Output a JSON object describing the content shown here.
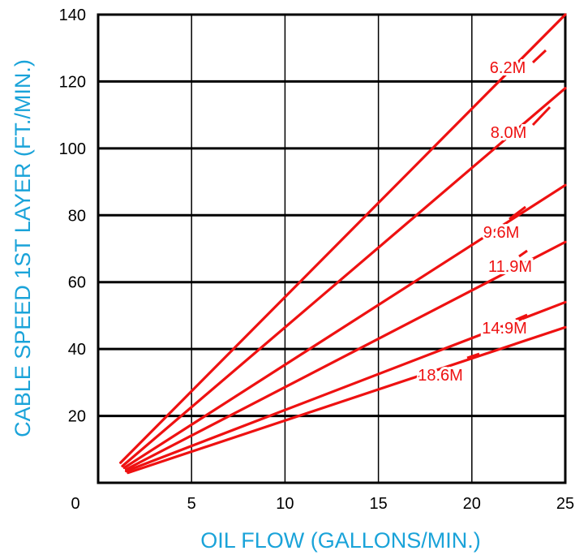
{
  "chart_data": {
    "type": "line",
    "title": "",
    "xlabel": "OIL FLOW (GALLONS/MIN.)",
    "ylabel": "CABLE SPEED 1ST LAYER (FT./MIN.)",
    "xlim": [
      0,
      25
    ],
    "ylim": [
      0,
      140
    ],
    "x_ticks": [
      "0",
      "5",
      "10",
      "15",
      "20",
      "25"
    ],
    "y_ticks": [
      "20",
      "40",
      "60",
      "80",
      "100",
      "120",
      "140"
    ],
    "grid": true,
    "legend": "none (series labelled inline)",
    "colors": {
      "series": "#ee1111",
      "axis_title": "#1aa3d9",
      "grid": "#000000"
    },
    "series": [
      {
        "name": "6.2M",
        "x": [
          1.2,
          25
        ],
        "y": [
          6,
          140
        ]
      },
      {
        "name": "8.0M",
        "x": [
          1.3,
          25
        ],
        "y": [
          5,
          118
        ]
      },
      {
        "name": "9.6M",
        "x": [
          1.4,
          25
        ],
        "y": [
          4.5,
          89
        ]
      },
      {
        "name": "11.9M",
        "x": [
          1.5,
          25
        ],
        "y": [
          4,
          72
        ]
      },
      {
        "name": "14.9M",
        "x": [
          1.5,
          25
        ],
        "y": [
          3.5,
          54
        ]
      },
      {
        "name": "18.6M",
        "x": [
          1.6,
          25
        ],
        "y": [
          3,
          46.5
        ]
      }
    ]
  }
}
